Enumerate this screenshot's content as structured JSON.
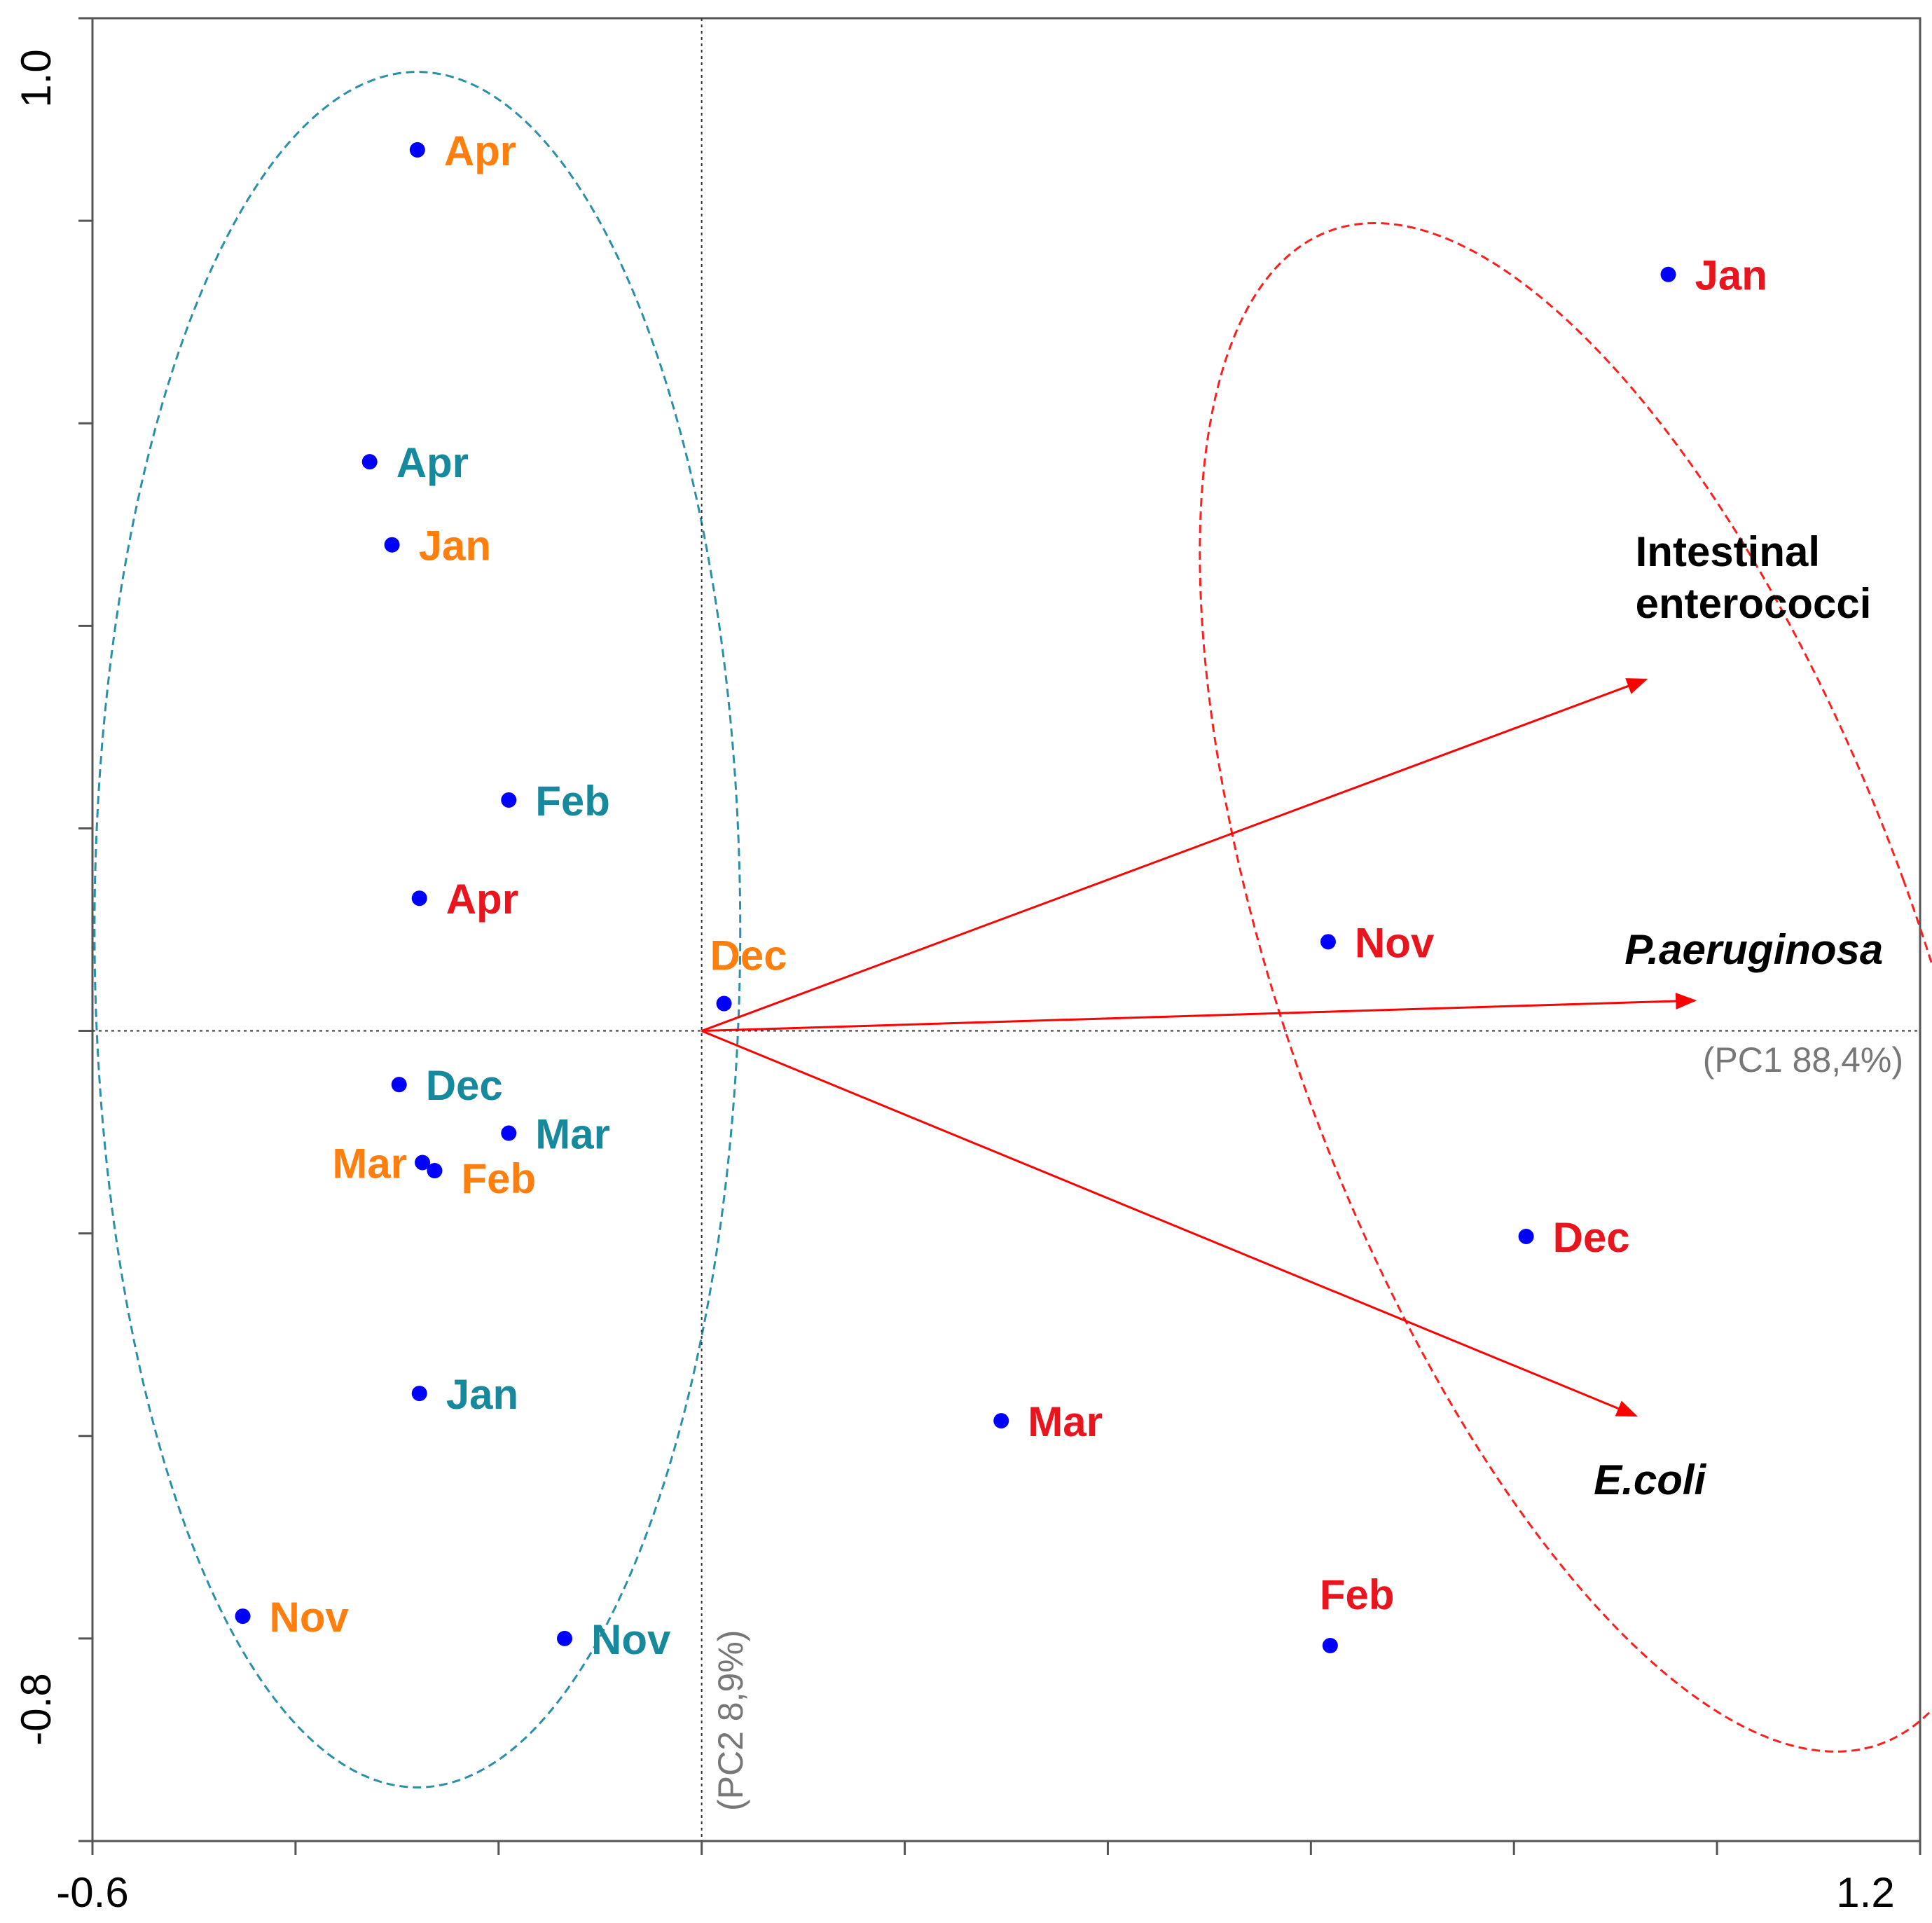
{
  "chart_data": {
    "type": "scatter",
    "title": "",
    "xlim": [
      -0.6,
      1.2
    ],
    "ylim": [
      -0.8,
      1.0
    ],
    "x_tick_labels": [
      "-0.6",
      "1.2"
    ],
    "y_tick_labels": [
      "1.0",
      "-0.8"
    ],
    "xlabel": "(PC1 88,4%)",
    "ylabel": "(PC2 8,9%)",
    "colors": {
      "orange": "#ff7f0e",
      "teal": "#17899c",
      "red": "#e8141e",
      "point": "#0000ff",
      "ellipse_teal": "#2a8fa8",
      "ellipse_red": "#ff1e1e",
      "arrow": "#ff0000"
    },
    "series": [
      {
        "name": "orange group",
        "color": "orange",
        "points": [
          {
            "label": "Apr",
            "x": -0.28,
            "y": 0.87
          },
          {
            "label": "Jan",
            "x": -0.305,
            "y": 0.48
          },
          {
            "label": "Dec",
            "x": 0.022,
            "y": 0.027
          },
          {
            "label": "Mar",
            "x": -0.275,
            "y": -0.13
          },
          {
            "label": "Feb",
            "x": -0.263,
            "y": -0.138
          },
          {
            "label": "Nov",
            "x": -0.452,
            "y": -0.578
          }
        ]
      },
      {
        "name": "teal group",
        "color": "teal",
        "points": [
          {
            "label": "Apr",
            "x": -0.327,
            "y": 0.562
          },
          {
            "label": "Feb",
            "x": -0.19,
            "y": 0.228
          },
          {
            "label": "Dec",
            "x": -0.298,
            "y": -0.053
          },
          {
            "label": "Mar",
            "x": -0.19,
            "y": -0.101
          },
          {
            "label": "Jan",
            "x": -0.278,
            "y": -0.358
          },
          {
            "label": "Nov",
            "x": -0.135,
            "y": -0.6
          }
        ]
      },
      {
        "name": "red group",
        "color": "red",
        "points": [
          {
            "label": "Jan",
            "x": 0.952,
            "y": 0.747
          },
          {
            "label": "Apr",
            "x": -0.278,
            "y": 0.131
          },
          {
            "label": "Nov",
            "x": 0.617,
            "y": 0.088
          },
          {
            "label": "Dec",
            "x": 0.812,
            "y": -0.203
          },
          {
            "label": "Mar",
            "x": 0.295,
            "y": -0.385
          },
          {
            "label": "Feb",
            "x": 0.619,
            "y": -0.607
          }
        ]
      }
    ],
    "vectors": [
      {
        "label_lines": [
          "Intestinal",
          "enterococci"
        ],
        "italic": false,
        "x": 0.93,
        "y": 0.347
      },
      {
        "label_lines": [
          "P.aeruginosa"
        ],
        "italic": true,
        "x": 0.978,
        "y": 0.03
      },
      {
        "label_lines": [
          "E.coli"
        ],
        "italic": true,
        "x": 0.92,
        "y": -0.38
      }
    ],
    "ellipses": [
      {
        "color": "ellipse_teal",
        "cx": -0.28,
        "cy": 0.1,
        "rx": 0.318,
        "ry": 0.847,
        "rotate_deg": 0
      },
      {
        "color": "ellipse_red",
        "cx": 0.89,
        "cy": 0.043,
        "rx": 0.312,
        "ry": 0.795,
        "rotate_deg": 20
      }
    ]
  }
}
